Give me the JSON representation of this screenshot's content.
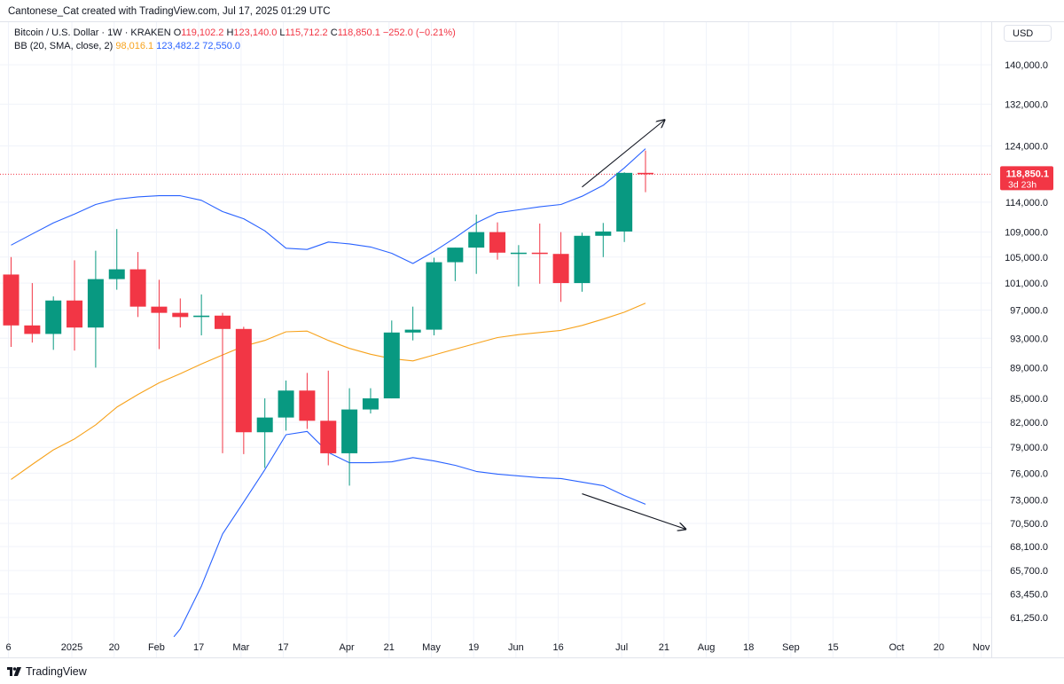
{
  "header": {
    "credit": "Cantonese_Cat created with TradingView.com, Jul 17, 2025 01:29 UTC"
  },
  "legend": {
    "symbol": "Bitcoin / U.S. Dollar · 1W · KRAKEN",
    "o_label": "O",
    "o_value": "119,102.2",
    "h_label": "H",
    "h_value": "123,140.0",
    "l_label": "L",
    "l_value": "115,712.2",
    "c_label": "C",
    "c_value": "118,850.1",
    "change": "−252.0 (−0.21%)",
    "bb_label": "BB (20, SMA, close, 2)",
    "bb_basis": "98,016.1",
    "bb_upper": "123,482.2",
    "bb_lower": "72,550.0"
  },
  "toolbar": {
    "currency": "USD"
  },
  "footer": {
    "brand": "TradingView"
  },
  "colors": {
    "up": "#089981",
    "down": "#f23645",
    "bb_upper": "#2962ff",
    "bb_lower": "#2962ff",
    "bb_basis": "#f7a21b",
    "grid": "#f0f3fa",
    "text": "#131722",
    "arrow": "#131722"
  },
  "chart_data": {
    "type": "candlestick",
    "scale": "log",
    "ylim": [
      59500,
      147000
    ],
    "y_ticks": [
      {
        "label": "140,000.0",
        "value": 140000
      },
      {
        "label": "132,000.0",
        "value": 132000
      },
      {
        "label": "124,000.0",
        "value": 124000
      },
      {
        "label": "114,000.0",
        "value": 114000
      },
      {
        "label": "109,000.0",
        "value": 109000
      },
      {
        "label": "105,000.0",
        "value": 105000
      },
      {
        "label": "101,000.0",
        "value": 101000
      },
      {
        "label": "97,000.0",
        "value": 97000
      },
      {
        "label": "93,000.0",
        "value": 93000
      },
      {
        "label": "89,000.0",
        "value": 89000
      },
      {
        "label": "85,000.0",
        "value": 85000
      },
      {
        "label": "82,000.0",
        "value": 82000
      },
      {
        "label": "79,000.0",
        "value": 79000
      },
      {
        "label": "76,000.0",
        "value": 76000
      },
      {
        "label": "73,000.0",
        "value": 73000
      },
      {
        "label": "70,500.0",
        "value": 70500
      },
      {
        "label": "68,100.0",
        "value": 68100
      },
      {
        "label": "65,700.0",
        "value": 65700
      },
      {
        "label": "63,450.0",
        "value": 63450
      },
      {
        "label": "61,250.0",
        "value": 61250
      }
    ],
    "x_ticks": [
      {
        "label": "6",
        "week": 0
      },
      {
        "label": "2025",
        "week": 3
      },
      {
        "label": "20",
        "week": 5
      },
      {
        "label": "Feb",
        "week": 7
      },
      {
        "label": "17",
        "week": 9
      },
      {
        "label": "Mar",
        "week": 11
      },
      {
        "label": "17",
        "week": 13
      },
      {
        "label": "Apr",
        "week": 16
      },
      {
        "label": "21",
        "week": 18
      },
      {
        "label": "May",
        "week": 20
      },
      {
        "label": "19",
        "week": 22
      },
      {
        "label": "Jun",
        "week": 24
      },
      {
        "label": "16",
        "week": 26
      },
      {
        "label": "Jul",
        "week": 29
      },
      {
        "label": "21",
        "week": 31
      },
      {
        "label": "Aug",
        "week": 33
      },
      {
        "label": "18",
        "week": 35
      },
      {
        "label": "Sep",
        "week": 37
      },
      {
        "label": "15",
        "week": 39
      },
      {
        "label": "Oct",
        "week": 42
      },
      {
        "label": "20",
        "week": 44
      },
      {
        "label": "Nov",
        "week": 46
      }
    ],
    "candles": [
      {
        "week": 0,
        "o": 102300,
        "h": 105000,
        "l": 91800,
        "c": 94800
      },
      {
        "week": 1,
        "o": 94800,
        "h": 101000,
        "l": 92400,
        "c": 93600
      },
      {
        "week": 2,
        "o": 93600,
        "h": 99000,
        "l": 91400,
        "c": 98400
      },
      {
        "week": 3,
        "o": 98400,
        "h": 104500,
        "l": 91300,
        "c": 94500
      },
      {
        "week": 4,
        "o": 94500,
        "h": 106000,
        "l": 89000,
        "c": 101600
      },
      {
        "week": 5,
        "o": 101600,
        "h": 109500,
        "l": 100000,
        "c": 103100
      },
      {
        "week": 6,
        "o": 103100,
        "h": 105800,
        "l": 96000,
        "c": 97500
      },
      {
        "week": 7,
        "o": 97500,
        "h": 101500,
        "l": 91500,
        "c": 96600
      },
      {
        "week": 8,
        "o": 96600,
        "h": 98700,
        "l": 94500,
        "c": 96000
      },
      {
        "week": 9,
        "o": 96000,
        "h": 99300,
        "l": 93400,
        "c": 96200
      },
      {
        "week": 10,
        "o": 96200,
        "h": 96600,
        "l": 78300,
        "c": 94300
      },
      {
        "week": 11,
        "o": 94300,
        "h": 94600,
        "l": 78200,
        "c": 80800
      },
      {
        "week": 12,
        "o": 80800,
        "h": 85000,
        "l": 76600,
        "c": 82600
      },
      {
        "week": 13,
        "o": 82600,
        "h": 87300,
        "l": 81000,
        "c": 86000
      },
      {
        "week": 14,
        "o": 86000,
        "h": 88300,
        "l": 81200,
        "c": 82200
      },
      {
        "week": 15,
        "o": 82200,
        "h": 88600,
        "l": 76900,
        "c": 78300
      },
      {
        "week": 16,
        "o": 78300,
        "h": 86300,
        "l": 74600,
        "c": 83600
      },
      {
        "week": 17,
        "o": 83600,
        "h": 86300,
        "l": 83100,
        "c": 85000
      },
      {
        "week": 18,
        "o": 85000,
        "h": 95500,
        "l": 85000,
        "c": 93800
      },
      {
        "week": 19,
        "o": 93800,
        "h": 97500,
        "l": 92700,
        "c": 94200
      },
      {
        "week": 20,
        "o": 94200,
        "h": 104900,
        "l": 93400,
        "c": 104200
      },
      {
        "week": 21,
        "o": 104200,
        "h": 106500,
        "l": 101300,
        "c": 106500
      },
      {
        "week": 22,
        "o": 106500,
        "h": 111900,
        "l": 102400,
        "c": 109000
      },
      {
        "week": 23,
        "o": 109000,
        "h": 110600,
        "l": 104600,
        "c": 105700
      },
      {
        "week": 24,
        "o": 105700,
        "h": 106900,
        "l": 100500,
        "c": 105700
      },
      {
        "week": 25,
        "o": 105700,
        "h": 110400,
        "l": 100900,
        "c": 105500
      },
      {
        "week": 26,
        "o": 105500,
        "h": 109000,
        "l": 98200,
        "c": 101000
      },
      {
        "week": 27,
        "o": 101000,
        "h": 108900,
        "l": 99700,
        "c": 108400
      },
      {
        "week": 28,
        "o": 108400,
        "h": 110500,
        "l": 105000,
        "c": 109100
      },
      {
        "week": 29,
        "o": 109100,
        "h": 119200,
        "l": 107400,
        "c": 119100
      },
      {
        "week": 30,
        "o": 119102.2,
        "h": 123140.0,
        "l": 115712.2,
        "c": 118850.1
      }
    ],
    "bb_upper": [
      [
        0,
        106900
      ],
      [
        1,
        108700
      ],
      [
        2,
        110500
      ],
      [
        3,
        112000
      ],
      [
        4,
        113600
      ],
      [
        5,
        114500
      ],
      [
        6,
        114900
      ],
      [
        7,
        115100
      ],
      [
        8,
        115100
      ],
      [
        9,
        114300
      ],
      [
        10,
        112400
      ],
      [
        11,
        111200
      ],
      [
        12,
        109200
      ],
      [
        13,
        106400
      ],
      [
        14,
        106200
      ],
      [
        15,
        107400
      ],
      [
        16,
        107100
      ],
      [
        17,
        106600
      ],
      [
        18,
        105600
      ],
      [
        19,
        104000
      ],
      [
        20,
        105900
      ],
      [
        21,
        108100
      ],
      [
        22,
        110500
      ],
      [
        23,
        112200
      ],
      [
        24,
        112700
      ],
      [
        25,
        113200
      ],
      [
        26,
        113600
      ],
      [
        27,
        115000
      ],
      [
        28,
        116900
      ],
      [
        29,
        120000
      ],
      [
        30,
        123482.2
      ]
    ],
    "bb_basis": [
      [
        0,
        75300
      ],
      [
        1,
        77000
      ],
      [
        2,
        78700
      ],
      [
        3,
        80000
      ],
      [
        4,
        81700
      ],
      [
        5,
        83900
      ],
      [
        6,
        85500
      ],
      [
        7,
        87000
      ],
      [
        8,
        88200
      ],
      [
        9,
        89500
      ],
      [
        10,
        90700
      ],
      [
        11,
        91900
      ],
      [
        12,
        92700
      ],
      [
        13,
        93900
      ],
      [
        14,
        94000
      ],
      [
        15,
        92700
      ],
      [
        16,
        91600
      ],
      [
        17,
        90800
      ],
      [
        18,
        90200
      ],
      [
        19,
        89900
      ],
      [
        20,
        90700
      ],
      [
        21,
        91500
      ],
      [
        22,
        92300
      ],
      [
        23,
        93100
      ],
      [
        24,
        93500
      ],
      [
        25,
        93800
      ],
      [
        26,
        94100
      ],
      [
        27,
        94800
      ],
      [
        28,
        95700
      ],
      [
        29,
        96700
      ],
      [
        30,
        98016.1
      ]
    ],
    "bb_lower": [
      [
        7.7,
        59500
      ],
      [
        8,
        60200
      ],
      [
        9,
        64200
      ],
      [
        10,
        69400
      ],
      [
        11,
        72800
      ],
      [
        12,
        76400
      ],
      [
        13,
        80500
      ],
      [
        14,
        80900
      ],
      [
        15,
        78400
      ],
      [
        16,
        77200
      ],
      [
        17,
        77200
      ],
      [
        18,
        77300
      ],
      [
        19,
        77800
      ],
      [
        20,
        77400
      ],
      [
        21,
        76900
      ],
      [
        22,
        76200
      ],
      [
        23,
        75900
      ],
      [
        24,
        75700
      ],
      [
        25,
        75500
      ],
      [
        26,
        75400
      ],
      [
        27,
        75000
      ],
      [
        28,
        74600
      ],
      [
        29,
        73500
      ],
      [
        30,
        72550.0
      ]
    ],
    "price_line": {
      "value": 118850.1,
      "label": "118,850.1",
      "countdown": "3d 23h"
    },
    "annotations": [
      {
        "type": "arrow",
        "from": [
          27,
          116600
        ],
        "to": [
          30.9,
          128900
        ]
      },
      {
        "type": "arrow",
        "from": [
          27,
          73700
        ],
        "to": [
          31.9,
          69900
        ]
      }
    ]
  }
}
